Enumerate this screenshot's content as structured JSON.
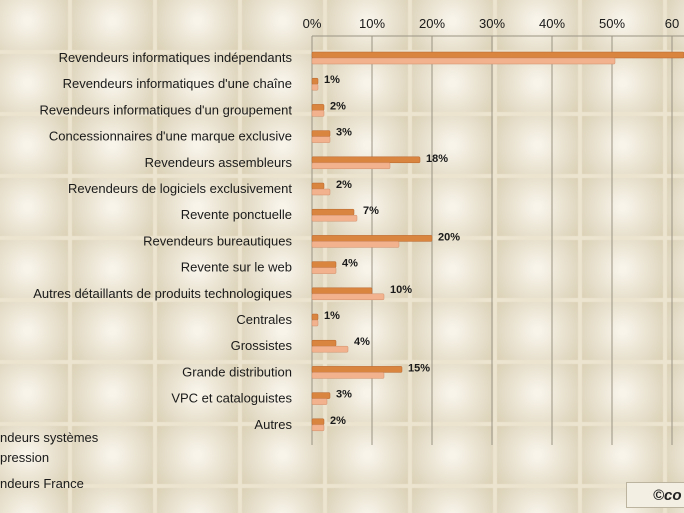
{
  "chart_data": {
    "type": "bar",
    "orientation": "horizontal",
    "xaxis_ticks": [
      "0%",
      "10%",
      "20%",
      "30%",
      "40%",
      "50%",
      "60"
    ],
    "xlim": [
      0,
      62
    ],
    "grid": true,
    "categories": [
      "Revendeurs informatiques indépendants",
      "Revendeurs informatiques d'une chaîne",
      "Revendeurs informatiques d'un groupement",
      "Concessionnaires d'une marque exclusive",
      "Revendeurs assembleurs",
      "Revendeurs de logiciels exclusivement",
      "Revente ponctuelle",
      "Revendeurs bureautiques",
      "Revente sur le web",
      "Autres détaillants  de produits technologiques",
      "Centrales",
      "Grossistes",
      "Grande distribution",
      "VPC et cataloguistes",
      "Autres"
    ],
    "series": [
      {
        "name": "Revendeurs systèmes d'impression",
        "color": "#d9843f",
        "values": [
          62,
          1,
          2,
          3,
          18,
          2,
          7,
          20,
          4,
          10,
          1,
          4,
          15,
          3,
          2
        ],
        "labels": [
          "",
          "1%",
          "2%",
          "3%",
          "18%",
          "2%",
          "7%",
          "20%",
          "4%",
          "10%",
          "1%",
          "4%",
          "15%",
          "3%",
          "2%"
        ]
      },
      {
        "name": "Revendeurs France",
        "color": "#f2b28e",
        "values": [
          50.5,
          1,
          2,
          3,
          13,
          3,
          7.5,
          14.5,
          4,
          12,
          1,
          6,
          12,
          2.5,
          2
        ]
      }
    ],
    "legend": [
      "ndeurs systèmes",
      "pression",
      "ndeurs France"
    ]
  },
  "copyright": "©co"
}
